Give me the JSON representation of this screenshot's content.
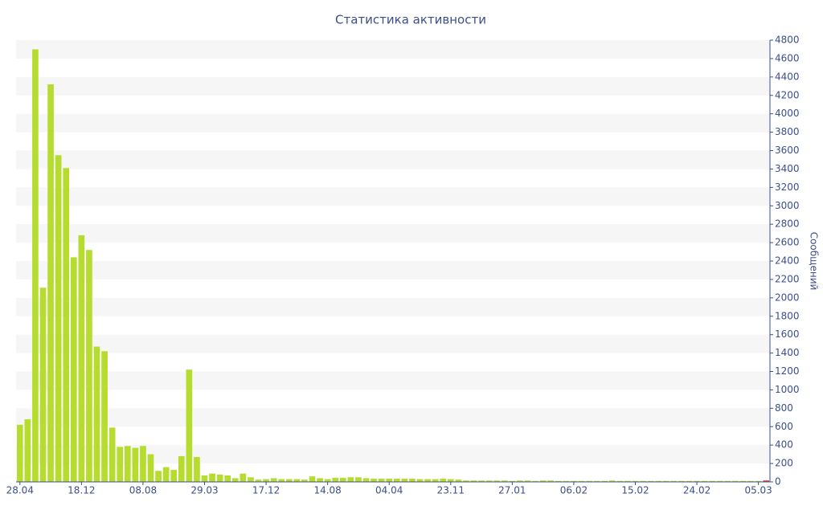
{
  "chart_data": {
    "type": "bar",
    "title": "Статистика активности",
    "y_label": "Сообщений",
    "categories": [
      "28.04",
      null,
      null,
      null,
      null,
      null,
      null,
      null,
      "18.12",
      null,
      null,
      null,
      null,
      null,
      null,
      null,
      "08.08",
      null,
      null,
      null,
      null,
      null,
      null,
      null,
      "29.03",
      null,
      null,
      null,
      null,
      null,
      null,
      null,
      "17.12",
      null,
      null,
      null,
      null,
      null,
      null,
      null,
      "14.08",
      null,
      null,
      null,
      null,
      null,
      null,
      null,
      "04.04",
      null,
      null,
      null,
      null,
      null,
      null,
      null,
      "23.11",
      null,
      null,
      null,
      null,
      null,
      null,
      null,
      "27.01",
      null,
      null,
      null,
      null,
      null,
      null,
      null,
      "06.02",
      null,
      null,
      null,
      null,
      null,
      null,
      null,
      "15.02",
      null,
      null,
      null,
      null,
      null,
      null,
      null,
      "24.02",
      null,
      null,
      null,
      null,
      null,
      null,
      null,
      "05.03",
      null
    ],
    "values": [
      620,
      680,
      4700,
      2110,
      4320,
      3550,
      3410,
      2440,
      2680,
      2520,
      1470,
      1420,
      590,
      380,
      390,
      370,
      390,
      300,
      120,
      160,
      130,
      280,
      1220,
      270,
      70,
      90,
      80,
      70,
      40,
      90,
      50,
      25,
      30,
      40,
      30,
      30,
      30,
      25,
      60,
      40,
      30,
      45,
      45,
      50,
      50,
      40,
      35,
      35,
      35,
      35,
      35,
      35,
      30,
      30,
      30,
      35,
      30,
      25,
      15,
      15,
      15,
      15,
      15,
      15,
      10,
      15,
      15,
      10,
      15,
      15,
      10,
      10,
      10,
      10,
      10,
      10,
      10,
      15,
      10,
      10,
      10,
      10,
      10,
      10,
      10,
      10,
      10,
      10,
      10,
      10,
      10,
      10,
      10,
      10,
      10,
      10,
      10,
      15
    ],
    "color": "#b5dc2f",
    "last_color": "#e0302c",
    "ylim": [
      0,
      4800
    ],
    "yticks": [
      0,
      200,
      400,
      600,
      800,
      1000,
      1200,
      1400,
      1600,
      1800,
      2000,
      2200,
      2400,
      2600,
      2800,
      3000,
      3200,
      3400,
      3600,
      3800,
      4000,
      4200,
      4400,
      4600,
      4800
    ],
    "y_axis_side": "right",
    "grid_bands": true
  }
}
